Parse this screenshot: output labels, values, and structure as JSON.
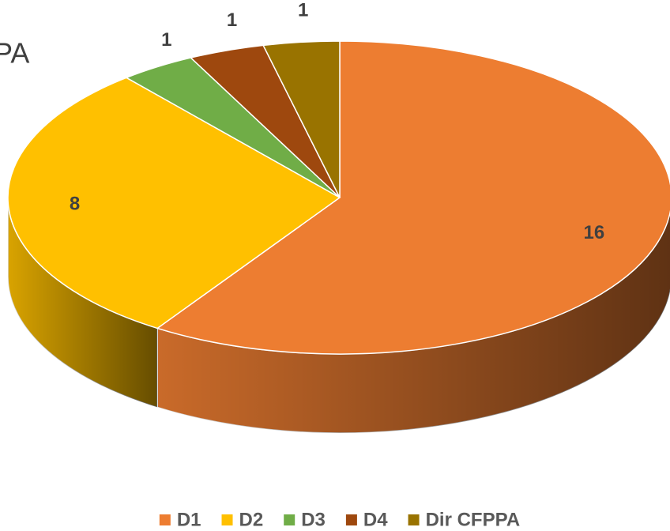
{
  "chart_data": {
    "type": "pie3d",
    "title": "PA",
    "categories": [
      "D1",
      "D2",
      "D3",
      "D4",
      "Dir CFPPA"
    ],
    "values": [
      16,
      8,
      1,
      1,
      1
    ],
    "colors": [
      "#ed7d31",
      "#ffc000",
      "#70ad47",
      "#9e480e",
      "#997300"
    ],
    "legend": "bottom"
  }
}
